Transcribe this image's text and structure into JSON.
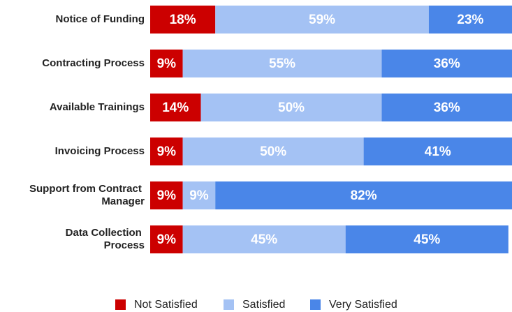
{
  "chart_data": {
    "type": "stacked-bar-horizontal",
    "categories": [
      "Notice of Funding",
      "Contracting Process",
      "Available Trainings",
      "Invoicing Process",
      "Support from Contract Manager",
      "Data Collection Process"
    ],
    "series": [
      {
        "name": "Not Satisfied",
        "color": "#cc0000",
        "values": [
          18,
          9,
          14,
          9,
          9,
          9
        ],
        "value_labels": [
          "18%",
          "9%",
          "14%",
          "9%",
          "9%",
          "9%"
        ]
      },
      {
        "name": "Satisfied",
        "color": "#a4c2f4",
        "values": [
          59,
          55,
          50,
          50,
          9,
          45
        ],
        "value_labels": [
          "59%",
          "55%",
          "50%",
          "50%",
          "9%",
          "45%"
        ]
      },
      {
        "name": "Very Satisfied",
        "color": "#4a86e8",
        "values": [
          23,
          36,
          36,
          41,
          82,
          45
        ],
        "value_labels": [
          "23%",
          "36%",
          "36%",
          "41%",
          "82%",
          "45%"
        ]
      }
    ],
    "xlim": [
      0,
      100
    ]
  }
}
